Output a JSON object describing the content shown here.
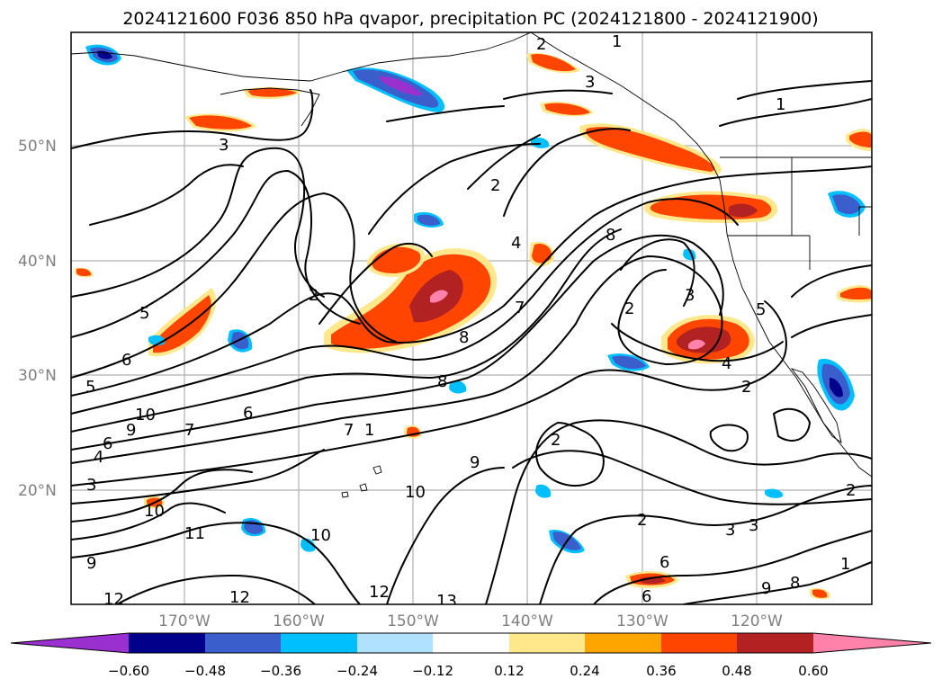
{
  "title": "2024121600 F036 850 hPa qvapor, precipitation PC (2024121800 - 2024121900)",
  "lat_labels": [
    "50°N",
    "40°N",
    "30°N",
    "20°N"
  ],
  "lon_labels": [
    "170°W",
    "160°W",
    "150°W",
    "140°W",
    "130°W",
    "120°W"
  ],
  "colorbar": {
    "tick_labels": [
      "−0.60",
      "−0.48",
      "−0.36",
      "−0.24",
      "−0.12",
      "0.12",
      "0.24",
      "0.36",
      "0.48",
      "0.60"
    ],
    "colors": [
      "#9b30d0",
      "#00008b",
      "#3a5fcd",
      "#00bfff",
      "#b0e2ff",
      "#ffffff",
      "#ffe88c",
      "#ffa500",
      "#ff4500",
      "#b22222",
      "#ff82ab"
    ],
    "extend": "both"
  },
  "contour_labels": [
    "3",
    "1",
    "3",
    "1",
    "2",
    "4",
    "8",
    "2",
    "3",
    "5",
    "2",
    "5",
    "6",
    "5",
    "8",
    "8",
    "4",
    "2",
    "10",
    "9",
    "7",
    "1",
    "7",
    "2",
    "4",
    "6",
    "3",
    "10",
    "6",
    "9",
    "10",
    "2",
    "3",
    "10",
    "11",
    "12",
    "12",
    "13",
    "2",
    "3",
    "6",
    "6",
    "8",
    "9",
    "1",
    "2",
    "12",
    "9",
    "7"
  ]
}
